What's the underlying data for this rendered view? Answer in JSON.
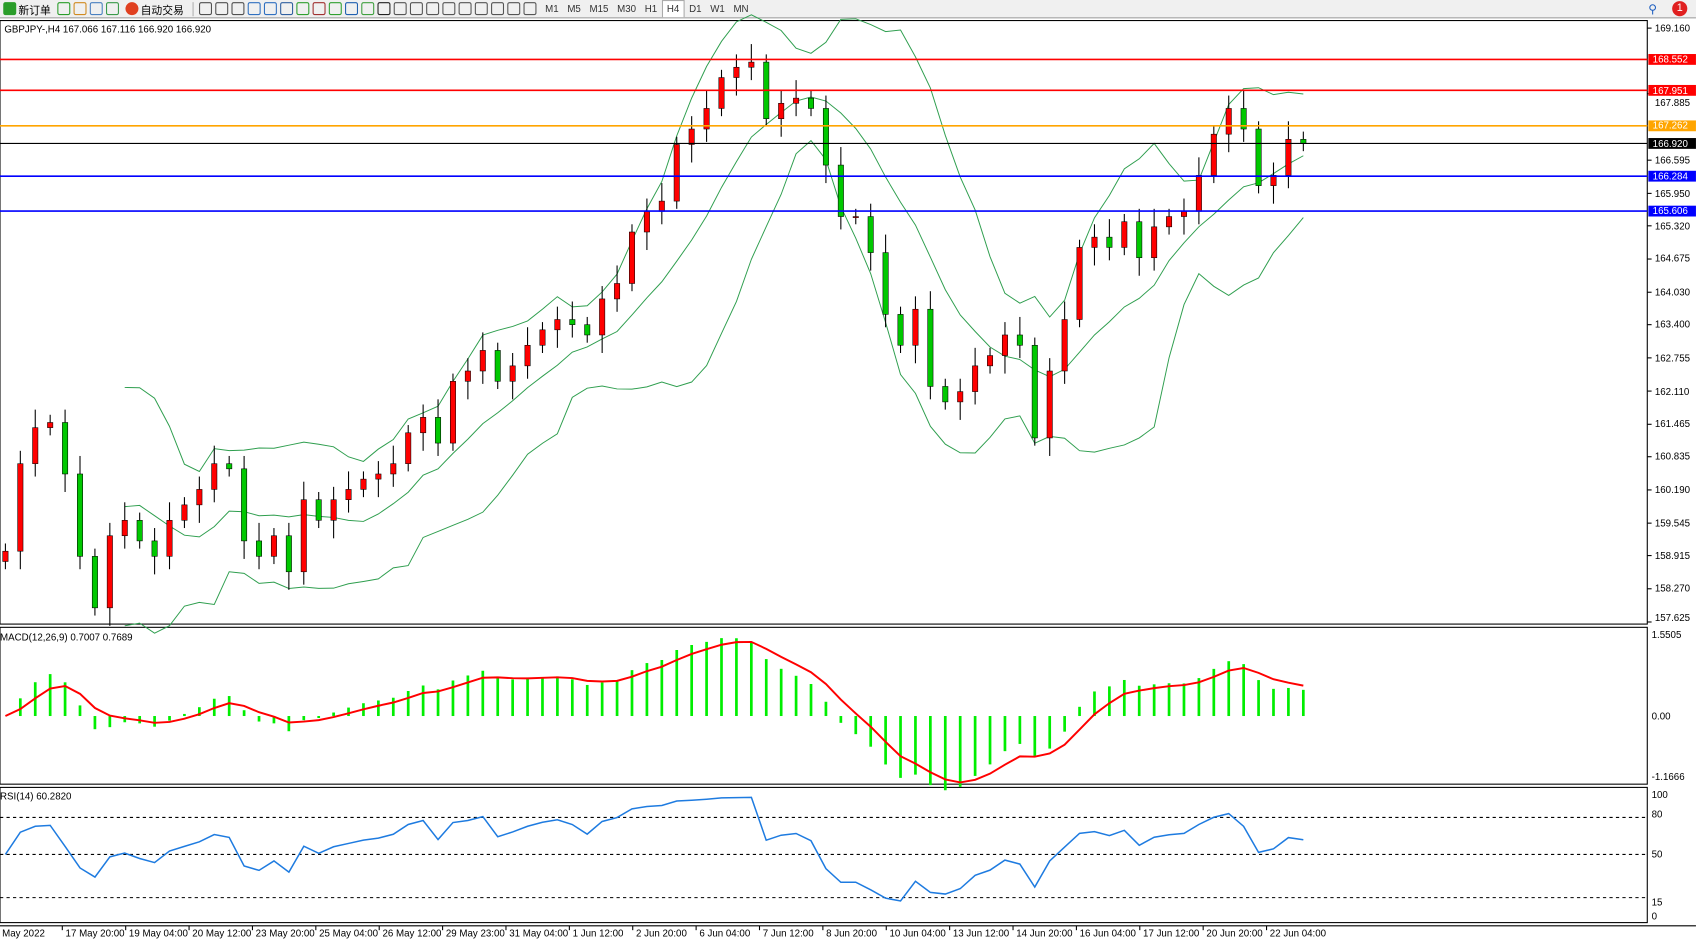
{
  "toolbar": {
    "new_order": "新订单",
    "auto_trading": "自动交易",
    "icons": [
      "new-chart-icon",
      "profiles-icon",
      "market-watch-icon",
      "signals-icon",
      "bar-chart-icon",
      "candle-chart-icon",
      "line-chart-icon",
      "zoom-in-icon",
      "zoom-out-icon",
      "tile-icon",
      "autoscroll-icon",
      "chart-shift-icon",
      "indicators-icon",
      "periods-icon",
      "templates-icon",
      "cursor-icon",
      "crosshair-icon",
      "vertical-line-icon",
      "horizontal-line-icon",
      "trendline-icon",
      "fibonacci-icon",
      "channel-icon",
      "text-icon",
      "text-label-icon",
      "arrows-icon"
    ],
    "timeframes": [
      "M1",
      "M5",
      "M15",
      "M30",
      "H1",
      "H4",
      "D1",
      "W1",
      "MN"
    ],
    "active_timeframe": "H4",
    "notification_count": "1"
  },
  "chart": {
    "header": "GBPJPY-,H4  167.066 167.116 166.920 166.920",
    "price_ticks": [
      "169.160",
      "167.885",
      "166.595",
      "165.950",
      "165.320",
      "164.675",
      "164.030",
      "163.400",
      "162.755",
      "162.110",
      "161.465",
      "160.835",
      "160.190",
      "159.545",
      "158.915",
      "158.270",
      "157.625"
    ],
    "levels": [
      {
        "price": "168.552",
        "color": "#ff0000"
      },
      {
        "price": "167.951",
        "color": "#ff0000"
      },
      {
        "price": "167.262",
        "color": "#ffa500"
      },
      {
        "price": "166.920",
        "color": "#000000"
      },
      {
        "price": "166.284",
        "color": "#0000ff"
      },
      {
        "price": "165.606",
        "color": "#0000ff"
      }
    ],
    "colors": {
      "up": "#ff0000",
      "down": "#00c800",
      "bands": "#2e9e4e",
      "macd_hist": "#00ee00",
      "macd_signal": "#ff0000",
      "rsi": "#1e7be0"
    },
    "closes": [
      159.0,
      160.7,
      161.4,
      161.5,
      160.5,
      158.9,
      157.9,
      159.3,
      159.6,
      159.2,
      158.9,
      159.6,
      159.9,
      160.2,
      160.7,
      160.6,
      159.2,
      158.9,
      159.3,
      158.6,
      160.0,
      159.6,
      160.0,
      160.2,
      160.4,
      160.5,
      160.7,
      161.3,
      161.6,
      161.1,
      162.3,
      162.5,
      162.9,
      162.3,
      162.6,
      163.0,
      163.3,
      163.5,
      163.4,
      163.2,
      163.9,
      164.2,
      165.2,
      165.6,
      165.8,
      166.9,
      167.2,
      167.6,
      168.2,
      168.4,
      168.5,
      167.4,
      167.7,
      167.8,
      167.6,
      166.5,
      165.5,
      165.5,
      164.8,
      163.6,
      163.0,
      163.7,
      162.2,
      161.9,
      162.1,
      162.6,
      162.8,
      163.2,
      163.0,
      161.2,
      162.5,
      163.5,
      164.9,
      165.1,
      164.9,
      165.4,
      164.7,
      165.3,
      165.5,
      165.6,
      166.3,
      167.1,
      167.6,
      167.2,
      166.1,
      166.3,
      167.0,
      166.92
    ]
  },
  "macd": {
    "label": "MACD(12,26,9) 0.7007 0.7689",
    "ticks": [
      "1.5505",
      "0.00",
      "-1.1666"
    ]
  },
  "rsi": {
    "label": "RSI(14) 60.2820",
    "ticks": [
      "100",
      "80",
      "50",
      "15",
      "0"
    ]
  },
  "time_axis": [
    "May 2022",
    "17 May 20:00",
    "19 May 04:00",
    "20 May 12:00",
    "23 May 20:00",
    "25 May 04:00",
    "26 May 12:00",
    "29 May 23:00",
    "31 May 04:00",
    "1 Jun 12:00",
    "2 Jun 20:00",
    "6 Jun 04:00",
    "7 Jun 12:00",
    "8 Jun 20:00",
    "10 Jun 04:00",
    "13 Jun 12:00",
    "14 Jun 20:00",
    "16 Jun 04:00",
    "17 Jun 12:00",
    "20 Jun 20:00",
    "22 Jun 04:00"
  ]
}
